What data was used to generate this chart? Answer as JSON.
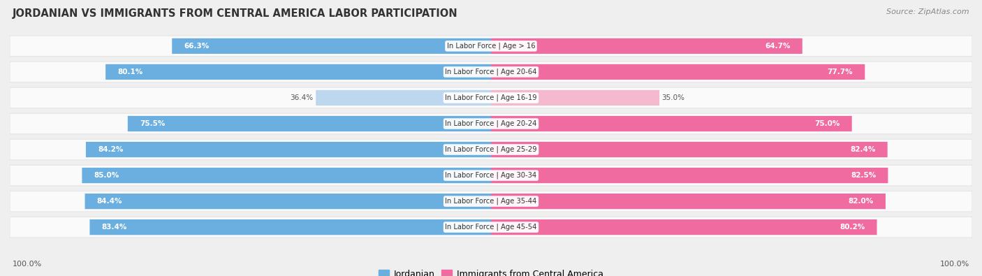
{
  "title": "JORDANIAN VS IMMIGRANTS FROM CENTRAL AMERICA LABOR PARTICIPATION",
  "source": "Source: ZipAtlas.com",
  "categories": [
    "In Labor Force | Age > 16",
    "In Labor Force | Age 20-64",
    "In Labor Force | Age 16-19",
    "In Labor Force | Age 20-24",
    "In Labor Force | Age 25-29",
    "In Labor Force | Age 30-34",
    "In Labor Force | Age 35-44",
    "In Labor Force | Age 45-54"
  ],
  "jordanian": [
    66.3,
    80.1,
    36.4,
    75.5,
    84.2,
    85.0,
    84.4,
    83.4
  ],
  "immigrant": [
    64.7,
    77.7,
    35.0,
    75.0,
    82.4,
    82.5,
    82.0,
    80.2
  ],
  "jordanian_color": "#6AAFE0",
  "jordanian_color_light": "#BDD7EE",
  "immigrant_color": "#F06CA0",
  "immigrant_color_light": "#F4B8CF",
  "background_color": "#EFEFEF",
  "row_bg": "#FAFAFA",
  "max_val": 100.0,
  "legend_jordanian": "Jordanian",
  "legend_immigrant": "Immigrants from Central America",
  "label_100_left": "100.0%",
  "label_100_right": "100.0%"
}
